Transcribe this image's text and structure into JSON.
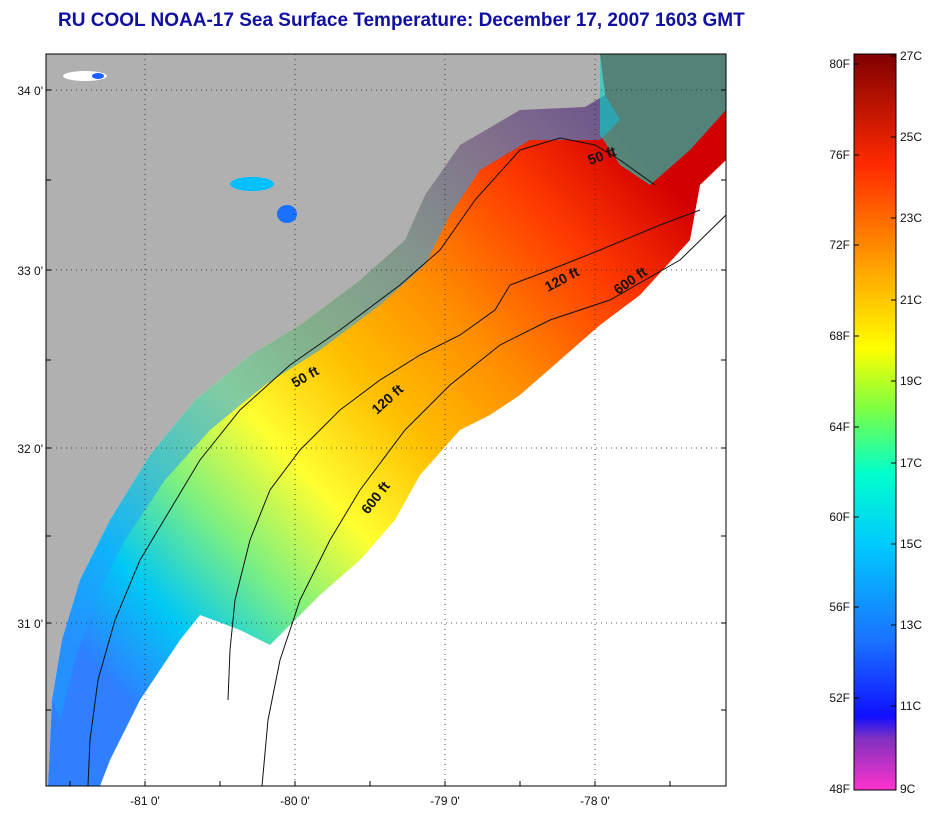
{
  "title": "RU COOL  NOAA-17  Sea Surface Temperature:  December 17, 2007 1603 GMT",
  "map": {
    "lat_labels": [
      "34 0'",
      "33 0'",
      "32 0'",
      "31 0'"
    ],
    "lon_labels": [
      "-81 0'",
      "-80 0'",
      "-79 0'",
      "-78 0'"
    ],
    "depth_labels": [
      "50 ft",
      "120 ft",
      "600 ft",
      "50 ft",
      "120 ft",
      "600 ft"
    ]
  },
  "colorbar": {
    "fahrenheit_labels": [
      "80F",
      "76F",
      "72F",
      "68F",
      "64F",
      "60F",
      "56F",
      "52F",
      "48F"
    ],
    "celsius_labels": [
      "27C",
      "25C",
      "23C",
      "21C",
      "19C",
      "17C",
      "15C",
      "13C",
      "11C",
      "9C"
    ]
  },
  "colors": {
    "land": "#b0b0b0",
    "title": "#1010a0",
    "scale": [
      "#ff33cc",
      "#2020ff",
      "#00aaff",
      "#00e5e5",
      "#3cf08c",
      "#ffff00",
      "#ff9900",
      "#ff2a00",
      "#800000"
    ]
  }
}
